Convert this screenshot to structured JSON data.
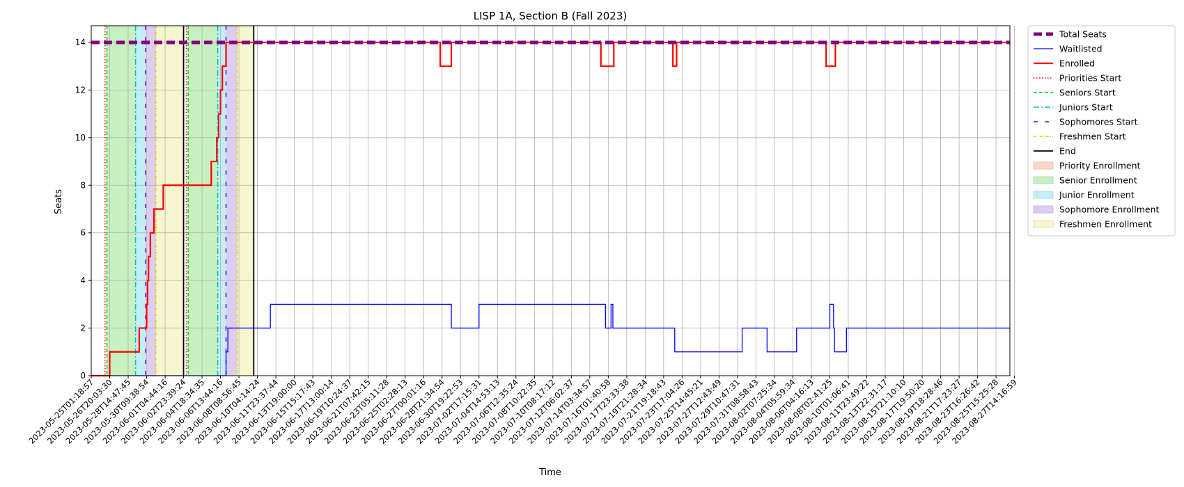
{
  "chart_data": {
    "type": "line",
    "title": "LISP 1A, Section B (Fall 2023)",
    "xlabel": "Time",
    "ylabel": "Seats",
    "ylim": [
      0,
      14.7
    ],
    "y_ticks": [
      0,
      2,
      4,
      6,
      8,
      10,
      12,
      14
    ],
    "grid": true,
    "legend_placement": "outside right, top",
    "x_ticks": [
      "2023-05-25T01:18:57",
      "2023-05-26T20:03:30",
      "2023-05-28T14:47:45",
      "2023-05-30T09:38:54",
      "2023-06-01T04:44:16",
      "2023-06-02T23:39:24",
      "2023-06-04T18:34:35",
      "2023-06-06T13:44:16",
      "2023-06-08T08:56:45",
      "2023-06-10T04:14:24",
      "2023-06-11T23:37:44",
      "2023-06-13T19:00:00",
      "2023-06-15T15:17:43",
      "2023-06-17T13:00:14",
      "2023-06-19T10:24:37",
      "2023-06-21T07:42:15",
      "2023-06-23T05:11:28",
      "2023-06-25T02:28:13",
      "2023-06-27T00:01:16",
      "2023-06-28T21:34:54",
      "2023-06-30T19:22:53",
      "2023-07-02T17:15:31",
      "2023-07-04T14:53:13",
      "2023-07-06T12:35:24",
      "2023-07-08T10:22:35",
      "2023-07-10T08:17:12",
      "2023-07-12T06:02:37",
      "2023-07-14T03:34:57",
      "2023-07-16T01:40:58",
      "2023-07-17T23:33:38",
      "2023-07-19T21:28:34",
      "2023-07-21T19:18:43",
      "2023-07-23T17:04:26",
      "2023-07-25T14:45:21",
      "2023-07-27T12:43:49",
      "2023-07-29T10:47:31",
      "2023-07-31T08:58:43",
      "2023-08-02T07:25:34",
      "2023-08-04T05:59:34",
      "2023-08-06T04:16:13",
      "2023-08-08T02:41:25",
      "2023-08-10T01:06:41",
      "2023-08-11T23:49:22",
      "2023-08-13T22:31:17",
      "2023-08-15T21:10:10",
      "2023-08-17T19:50:20",
      "2023-08-19T18:28:46",
      "2023-08-21T17:23:27",
      "2023-08-23T16:26:42",
      "2023-08-25T15:25:28",
      "2023-08-27T14:16:59"
    ],
    "x_range_index": [
      0,
      49.75
    ],
    "series": [
      {
        "name": "Total Seats",
        "color": "#800080",
        "style": "dashed-thick",
        "points": [
          [
            0,
            14
          ],
          [
            49.75,
            14
          ]
        ]
      },
      {
        "name": "Waitlisted",
        "color": "#0000ff",
        "style": "solid-thin",
        "points": [
          [
            0,
            0
          ],
          [
            7.3,
            0
          ],
          [
            7.3,
            1
          ],
          [
            7.4,
            1
          ],
          [
            7.4,
            2
          ],
          [
            9.0,
            2
          ],
          [
            9.0,
            2
          ],
          [
            9.7,
            2
          ],
          [
            9.7,
            3
          ],
          [
            19.5,
            3
          ],
          [
            19.5,
            2
          ],
          [
            21.0,
            2
          ],
          [
            21.0,
            3
          ],
          [
            27.85,
            3
          ],
          [
            27.85,
            2
          ],
          [
            28.15,
            2
          ],
          [
            28.15,
            3
          ],
          [
            28.25,
            3
          ],
          [
            28.25,
            2
          ],
          [
            31.6,
            2
          ],
          [
            31.6,
            1
          ],
          [
            35.25,
            1
          ],
          [
            35.25,
            2
          ],
          [
            36.6,
            2
          ],
          [
            36.6,
            1
          ],
          [
            38.2,
            1
          ],
          [
            38.2,
            2
          ],
          [
            40.0,
            2
          ],
          [
            40.0,
            3
          ],
          [
            40.2,
            3
          ],
          [
            40.2,
            2
          ],
          [
            40.25,
            2
          ],
          [
            40.25,
            1
          ],
          [
            40.9,
            1
          ],
          [
            40.9,
            2
          ],
          [
            49.75,
            2
          ]
        ]
      },
      {
        "name": "Enrolled",
        "color": "#ff0000",
        "style": "solid-thick",
        "points": [
          [
            0,
            0
          ],
          [
            1.0,
            0
          ],
          [
            1.0,
            1
          ],
          [
            2.6,
            1
          ],
          [
            2.6,
            2
          ],
          [
            3.0,
            2
          ],
          [
            3.0,
            3
          ],
          [
            3.05,
            3
          ],
          [
            3.05,
            4
          ],
          [
            3.1,
            4
          ],
          [
            3.1,
            5
          ],
          [
            3.2,
            5
          ],
          [
            3.2,
            6
          ],
          [
            3.4,
            6
          ],
          [
            3.4,
            7
          ],
          [
            3.9,
            7
          ],
          [
            3.9,
            8
          ],
          [
            6.5,
            8
          ],
          [
            6.5,
            9
          ],
          [
            6.8,
            9
          ],
          [
            6.8,
            10
          ],
          [
            6.9,
            10
          ],
          [
            6.9,
            11
          ],
          [
            7.0,
            11
          ],
          [
            7.0,
            12
          ],
          [
            7.1,
            12
          ],
          [
            7.1,
            13
          ],
          [
            7.3,
            13
          ],
          [
            7.3,
            14
          ],
          [
            18.9,
            14
          ],
          [
            18.9,
            13
          ],
          [
            19.5,
            13
          ],
          [
            19.5,
            14
          ],
          [
            27.6,
            14
          ],
          [
            27.6,
            13
          ],
          [
            28.3,
            13
          ],
          [
            28.3,
            14
          ],
          [
            31.5,
            14
          ],
          [
            31.5,
            13
          ],
          [
            31.7,
            13
          ],
          [
            31.7,
            14
          ],
          [
            39.8,
            14
          ],
          [
            39.8,
            13
          ],
          [
            40.3,
            13
          ],
          [
            40.3,
            14
          ],
          [
            49.75,
            14
          ]
        ]
      }
    ],
    "vertical_lines": [
      {
        "name": "Priorities Start",
        "color": "#ff0000",
        "style": "dotted",
        "x": [
          0.75,
          5.15
        ]
      },
      {
        "name": "Seniors Start",
        "color": "#00cc00",
        "style": "dashed",
        "x": [
          0.85,
          5.25
        ]
      },
      {
        "name": "Juniors Start",
        "color": "#00bfbf",
        "style": "dashdot",
        "x": [
          2.4,
          6.85
        ]
      },
      {
        "name": "Sophomores Start",
        "color": "#6600cc",
        "style": "loose-dashed",
        "x": [
          2.95,
          7.3
        ]
      },
      {
        "name": "Freshmen Start",
        "color": "#ddcc00",
        "style": "dashdot-fine",
        "x": [
          3.5,
          7.9
        ]
      },
      {
        "name": "End",
        "color": "#000000",
        "style": "solid",
        "x": [
          5.0,
          8.8
        ]
      }
    ],
    "shaded_regions": [
      {
        "name": "Senior Enrollment",
        "color": "#c8f0c0",
        "ranges": [
          [
            0.85,
            2.4
          ],
          [
            5.25,
            6.85
          ]
        ]
      },
      {
        "name": "Junior Enrollment",
        "color": "#c2eff3",
        "ranges": [
          [
            2.4,
            2.95
          ],
          [
            6.85,
            7.3
          ]
        ]
      },
      {
        "name": "Sophomore Enrollment",
        "color": "#ddcdf2",
        "ranges": [
          [
            2.95,
            3.5
          ],
          [
            7.3,
            7.9
          ]
        ]
      },
      {
        "name": "Freshmen Enrollment",
        "color": "#f6f6cf",
        "ranges": [
          [
            3.5,
            5.0
          ],
          [
            7.9,
            8.8
          ]
        ]
      },
      {
        "name": "Priority Enrollment",
        "color": "#f8d8c8",
        "ranges": []
      }
    ],
    "legend": [
      {
        "label": "Total Seats",
        "kind": "line",
        "color": "#800080",
        "style": "dashed-thick"
      },
      {
        "label": "Waitlisted",
        "kind": "line",
        "color": "#0000ff",
        "style": "solid-thin"
      },
      {
        "label": "Enrolled",
        "kind": "line",
        "color": "#ff0000",
        "style": "solid-thick"
      },
      {
        "label": "Priorities Start",
        "kind": "line",
        "color": "#ff0000",
        "style": "dotted"
      },
      {
        "label": "Seniors Start",
        "kind": "line",
        "color": "#00cc00",
        "style": "dashed"
      },
      {
        "label": "Juniors Start",
        "kind": "line",
        "color": "#00bfbf",
        "style": "dashdot"
      },
      {
        "label": "Sophomores Start",
        "kind": "line",
        "color": "#6600cc",
        "style": "loose-dashed"
      },
      {
        "label": "Freshmen Start",
        "kind": "line",
        "color": "#ddcc00",
        "style": "dashdot-fine"
      },
      {
        "label": "End",
        "kind": "line",
        "color": "#000000",
        "style": "solid"
      },
      {
        "label": "Priority Enrollment",
        "kind": "patch",
        "color": "#f8d8c8",
        "edge": "#e8b8a0"
      },
      {
        "label": "Senior Enrollment",
        "kind": "patch",
        "color": "#c8f0c0",
        "edge": "#a8dca0"
      },
      {
        "label": "Junior Enrollment",
        "kind": "patch",
        "color": "#c2eff3",
        "edge": "#9cdde4"
      },
      {
        "label": "Sophomore Enrollment",
        "kind": "patch",
        "color": "#ddcdf2",
        "edge": "#bfa8e4"
      },
      {
        "label": "Freshmen Enrollment",
        "kind": "patch",
        "color": "#f6f6cf",
        "edge": "#e0e0a8"
      }
    ]
  }
}
